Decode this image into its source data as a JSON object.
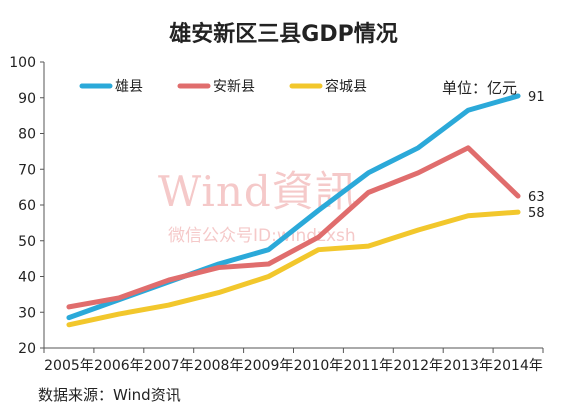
{
  "chart_data": {
    "type": "line",
    "title": "雄安新区三县GDP情况",
    "unit_label": "单位：亿元",
    "source": "数据来源：Wind资讯",
    "watermark": {
      "main": "Wind資訊",
      "sub": "微信公众号ID:windzxsh"
    },
    "categories": [
      "2005年",
      "2006年",
      "2007年",
      "2008年",
      "2009年",
      "2010年",
      "2011年",
      "2012年",
      "2013年",
      "2014年"
    ],
    "ylim": [
      20,
      100
    ],
    "yticks": [
      "20",
      "30",
      "40",
      "50",
      "60",
      "70",
      "80",
      "90",
      "100"
    ],
    "grid": false,
    "legend_position": "top",
    "series": [
      {
        "name": "雄县",
        "color": "#2ba9d9",
        "values": [
          28.5,
          33.5,
          38.5,
          43.5,
          47.5,
          58.5,
          69,
          76,
          86.5,
          90.5
        ],
        "end_label": "91"
      },
      {
        "name": "安新县",
        "color": "#e06d6d",
        "values": [
          31.5,
          34,
          39,
          42.5,
          43.5,
          51,
          63.5,
          69,
          76,
          62.5
        ],
        "end_label": "63"
      },
      {
        "name": "容城县",
        "color": "#f2c72c",
        "values": [
          26.5,
          29.5,
          32,
          35.5,
          40,
          47.5,
          48.5,
          53,
          57,
          58
        ],
        "end_label": "58"
      }
    ]
  }
}
